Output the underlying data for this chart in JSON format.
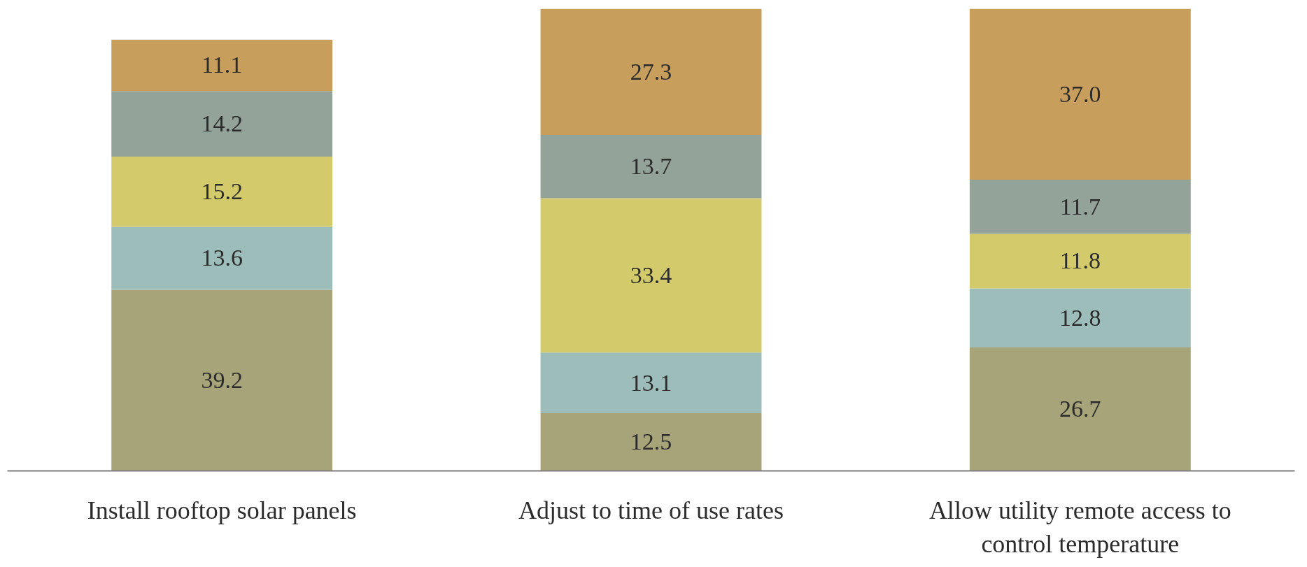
{
  "chart_data": {
    "type": "bar",
    "stacked": true,
    "data_labels": true,
    "grid": false,
    "tick_labels": "x",
    "categories": [
      "Install rooftop solar panels",
      "Adjust to time of use rates",
      "Allow utility remote access to control temperature"
    ],
    "ylim": [
      0,
      100
    ],
    "series": [
      {
        "color": "#a8a47a",
        "values": [
          39.2,
          12.5,
          26.7
        ]
      },
      {
        "color": "#9dbdbb",
        "values": [
          13.6,
          13.1,
          12.8
        ]
      },
      {
        "color": "#d3ca6c",
        "values": [
          15.2,
          33.4,
          11.8
        ]
      },
      {
        "color": "#94a39a",
        "values": [
          14.2,
          13.7,
          11.7
        ]
      },
      {
        "color": "#c89e5c",
        "values": [
          11.1,
          27.3,
          37.0
        ],
        "value_labels": [
          "11.1",
          "27.3",
          "37.0"
        ]
      }
    ]
  }
}
